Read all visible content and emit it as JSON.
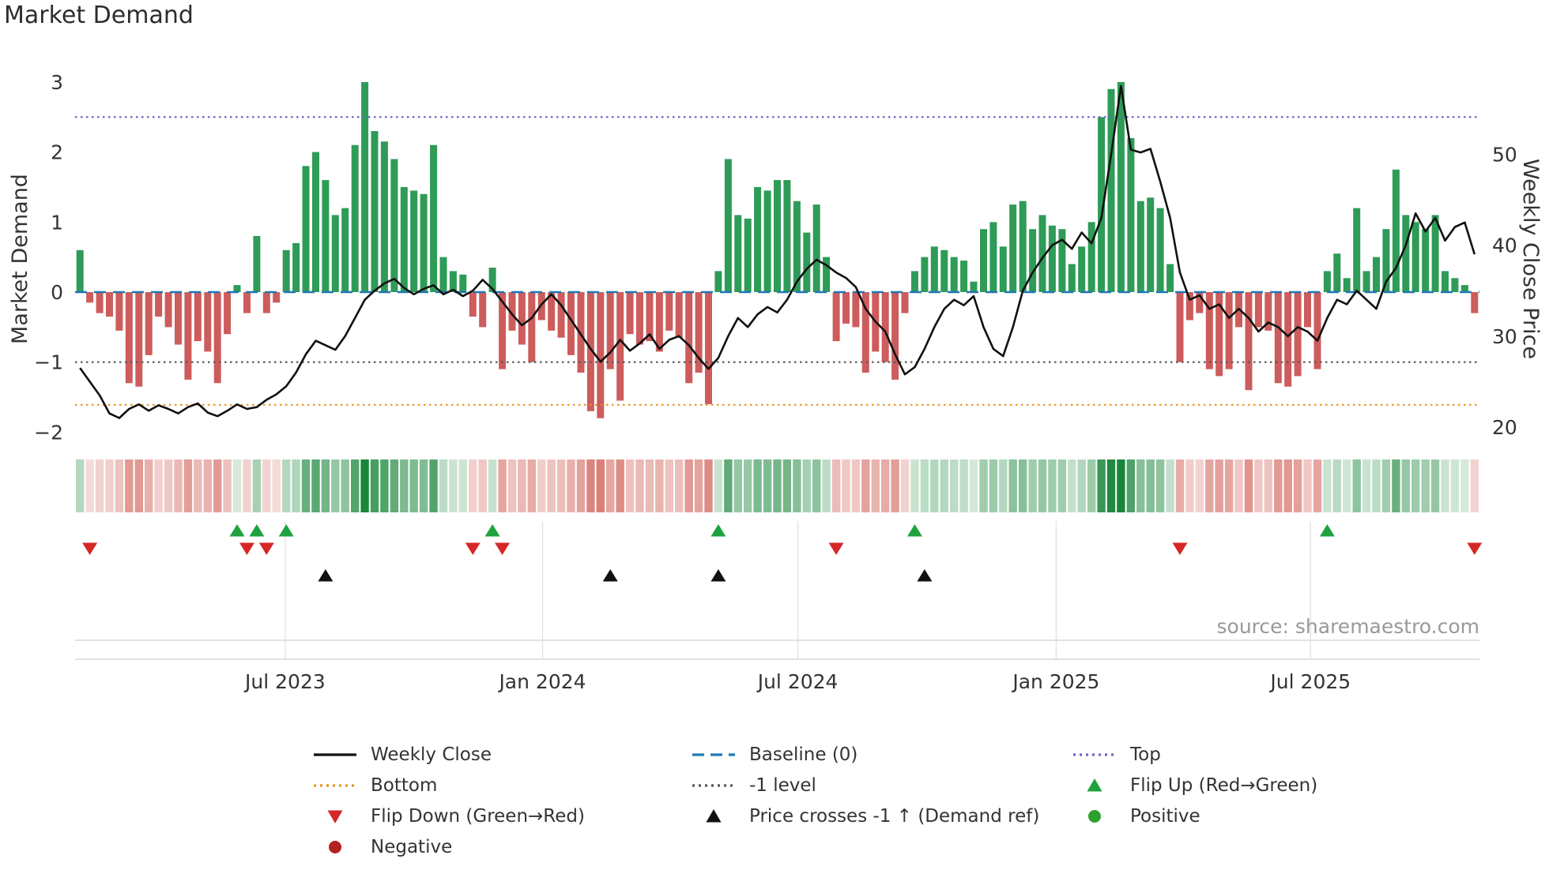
{
  "title": "Market Demand",
  "left_axis_title": "Market Demand",
  "right_axis_title": "Weekly Close Price",
  "source": "source: sharemaestro.com",
  "colors": {
    "positive_bar": "#2e9b57",
    "negative_bar": "#cd5c5c",
    "baseline": "#1f77b4",
    "top_line": "#6f63c8",
    "bottom_line": "#e69422",
    "minus1_line": "#555555",
    "price_line": "#111111",
    "flip_up": "#1fa23d",
    "flip_down": "#d62728",
    "price_cross": "#111111",
    "positive_dot": "#2ca02c",
    "negative_dot": "#b22222",
    "heat_green": "25,134,58",
    "heat_red": "199,62,50",
    "grid": "#e3e3e3",
    "spine": "#d9d9d9",
    "tick_text": "#333333"
  },
  "chart_data": {
    "type": "bar",
    "n_points": 143,
    "x_unit": "week",
    "series": [
      {
        "name": "Market Demand",
        "type": "bar",
        "axis": "left",
        "values": [
          0.6,
          -0.15,
          -0.3,
          -0.35,
          -0.55,
          -1.3,
          -1.35,
          -0.9,
          -0.35,
          -0.5,
          -0.75,
          -1.25,
          -0.7,
          -0.85,
          -1.3,
          -0.6,
          0.1,
          -0.3,
          0.8,
          -0.3,
          -0.15,
          0.6,
          0.7,
          1.8,
          2.0,
          1.6,
          1.1,
          1.2,
          2.1,
          3.0,
          2.3,
          2.15,
          1.9,
          1.5,
          1.45,
          1.4,
          2.1,
          0.5,
          0.3,
          0.25,
          -0.35,
          -0.5,
          0.35,
          -1.1,
          -0.55,
          -0.75,
          -1.0,
          -0.4,
          -0.55,
          -0.65,
          -0.9,
          -1.15,
          -1.7,
          -1.8,
          -1.1,
          -1.55,
          -0.6,
          -0.75,
          -0.7,
          -0.85,
          -0.55,
          -0.65,
          -1.3,
          -1.15,
          -1.6,
          0.3,
          1.9,
          1.1,
          1.05,
          1.5,
          1.45,
          1.6,
          1.6,
          1.3,
          0.85,
          1.25,
          0.5,
          -0.7,
          -0.45,
          -0.5,
          -1.15,
          -0.85,
          -1.0,
          -1.25,
          -0.3,
          0.3,
          0.5,
          0.65,
          0.6,
          0.5,
          0.45,
          0.15,
          0.9,
          1.0,
          0.65,
          1.25,
          1.3,
          0.9,
          1.1,
          0.95,
          0.9,
          0.4,
          0.65,
          1.0,
          2.5,
          2.9,
          3.0,
          2.2,
          1.3,
          1.35,
          1.2,
          0.4,
          -1.0,
          -0.4,
          -0.3,
          -1.1,
          -1.2,
          -1.1,
          -0.5,
          -1.4,
          -0.5,
          -0.55,
          -1.3,
          -1.35,
          -1.2,
          -0.5,
          -1.1,
          0.3,
          0.55,
          0.2,
          1.2,
          0.3,
          0.5,
          0.9,
          1.75,
          1.1,
          1.0,
          0.9,
          1.1,
          0.3,
          0.2,
          0.1,
          -0.3
        ]
      },
      {
        "name": "Weekly Close",
        "type": "line",
        "axis": "right",
        "values": [
          26.5,
          25.0,
          23.5,
          21.5,
          21.0,
          22.0,
          22.5,
          21.8,
          22.4,
          22.0,
          21.5,
          22.2,
          22.6,
          21.6,
          21.2,
          21.8,
          22.5,
          22.0,
          22.2,
          23.0,
          23.6,
          24.5,
          26.0,
          28.0,
          29.5,
          29.0,
          28.5,
          30.0,
          32.0,
          34.0,
          35.0,
          35.8,
          36.3,
          35.3,
          34.6,
          35.2,
          35.6,
          34.6,
          35.1,
          34.4,
          35.0,
          36.2,
          35.2,
          33.8,
          32.4,
          31.2,
          32.0,
          33.5,
          34.6,
          33.4,
          31.8,
          30.2,
          28.6,
          27.2,
          28.2,
          29.6,
          28.4,
          29.2,
          30.2,
          28.6,
          29.6,
          30.0,
          29.0,
          27.6,
          26.4,
          27.6,
          30.0,
          32.0,
          31.0,
          32.4,
          33.2,
          32.6,
          34.0,
          36.0,
          37.4,
          38.4,
          37.8,
          37.0,
          36.4,
          35.4,
          33.0,
          31.6,
          30.5,
          28.0,
          25.8,
          26.6,
          28.6,
          31.0,
          33.0,
          34.0,
          33.4,
          34.4,
          31.0,
          28.6,
          27.8,
          31.0,
          35.0,
          37.0,
          38.6,
          40.0,
          40.6,
          39.6,
          41.4,
          40.2,
          43.0,
          50.0,
          57.5,
          50.5,
          50.2,
          50.6,
          47.0,
          43.0,
          37.0,
          34.0,
          34.5,
          33.0,
          33.5,
          32.0,
          33.0,
          32.0,
          30.5,
          31.5,
          31.0,
          30.0,
          31.0,
          30.5,
          29.5,
          32.0,
          34.0,
          33.5,
          35.0,
          34.0,
          33.0,
          36.0,
          37.5,
          40.0,
          43.5,
          41.5,
          43.0,
          40.5,
          42.0,
          42.5,
          39.0
        ]
      }
    ],
    "reference_lines": {
      "baseline": 0,
      "top": 2.5,
      "minus1": -1,
      "bottom": -1.61
    },
    "yticks_left": [
      3,
      2,
      1,
      0,
      -1,
      -2
    ],
    "yticks_right": [
      50,
      40,
      30,
      20
    ],
    "ylim_left": [
      -2.35,
      3.15
    ],
    "ylim_right": [
      19,
      58
    ],
    "x_ticks": [
      {
        "label": "Jul 2023",
        "week": 20.9
      },
      {
        "label": "Jan 2024",
        "week": 47.1
      },
      {
        "label": "Jul 2024",
        "week": 73.1
      },
      {
        "label": "Jan 2025",
        "week": 99.4
      },
      {
        "label": "Jul 2025",
        "week": 125.3
      }
    ],
    "markers": {
      "flip_up_weeks": [
        16,
        18,
        21,
        42,
        65,
        85,
        127
      ],
      "flip_down_weeks": [
        1,
        17,
        19,
        40,
        43,
        77,
        112,
        142
      ],
      "price_cross_weeks": [
        25,
        54,
        65,
        86
      ]
    },
    "heatmap": {
      "note": "intensity strip derived from Market Demand values",
      "positive_color_rgb": "25,134,58",
      "negative_color_rgb": "199,62,50"
    }
  },
  "legend": {
    "columns": [
      {
        "items": [
          {
            "swatch": "line",
            "dash": "solid",
            "color": "#111111",
            "icon": "weekly-close-line-icon",
            "label": "Weekly Close"
          },
          {
            "swatch": "line",
            "dash": "dotted",
            "color": "#e69422",
            "icon": "bottom-line-icon",
            "label": "Bottom"
          },
          {
            "swatch": "tri-down",
            "color": "#d62728",
            "icon": "flip-down-triangle-icon",
            "label": "Flip Down (Green→Red)"
          },
          {
            "swatch": "circle",
            "color": "#b22222",
            "icon": "negative-dot-icon",
            "label": "Negative"
          }
        ]
      },
      {
        "items": [
          {
            "swatch": "line",
            "dash": "dashed",
            "color": "#1f77b4",
            "icon": "baseline-dash-icon",
            "label": "Baseline (0)"
          },
          {
            "swatch": "line",
            "dash": "dotted",
            "color": "#555555",
            "icon": "minus1-line-icon",
            "label": "-1 level"
          },
          {
            "swatch": "tri-up",
            "color": "#111111",
            "icon": "price-cross-triangle-icon",
            "label": "Price crosses -1 ↑ (Demand ref)"
          }
        ]
      },
      {
        "items": [
          {
            "swatch": "line",
            "dash": "dotted",
            "color": "#6f63c8",
            "icon": "top-line-icon",
            "label": "Top"
          },
          {
            "swatch": "tri-up",
            "color": "#1fa23d",
            "icon": "flip-up-triangle-icon",
            "label": "Flip Up (Red→Green)"
          },
          {
            "swatch": "circle",
            "color": "#2ca02c",
            "icon": "positive-dot-icon",
            "label": "Positive"
          }
        ]
      }
    ]
  }
}
